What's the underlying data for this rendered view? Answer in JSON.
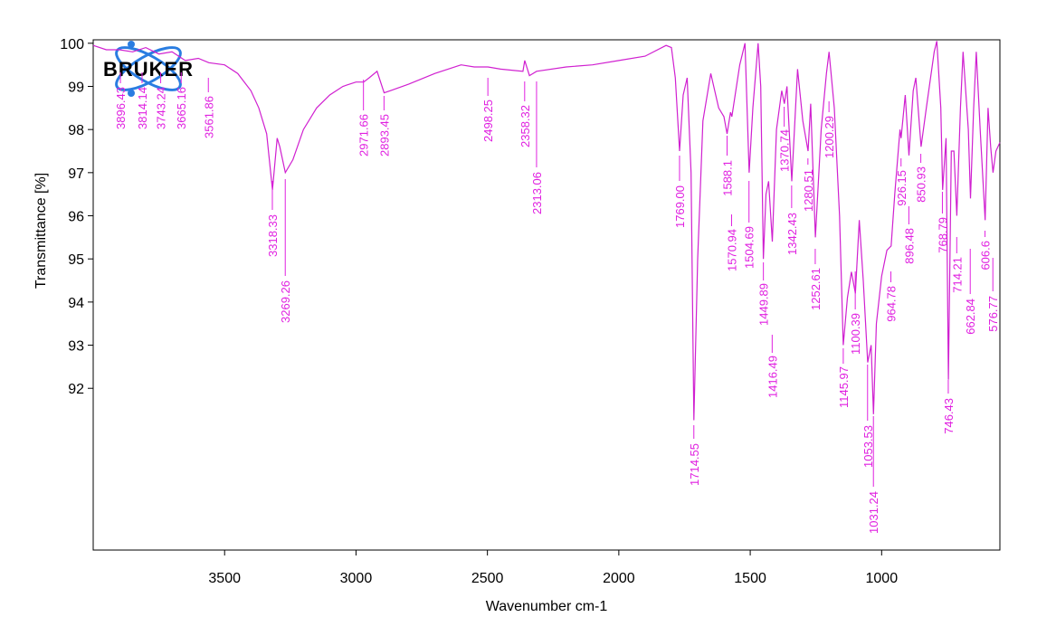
{
  "chart_data": {
    "type": "line",
    "logo": "BRUKER",
    "x_label": "Wavenumber cm-1",
    "y_label": "Transmittance [%]",
    "xlim": [
      4000,
      550
    ],
    "ylim": [
      88.25,
      100.08
    ],
    "xticks": [
      3500,
      3000,
      2500,
      2000,
      1500,
      1000
    ],
    "yticks": [
      92,
      93,
      94,
      95,
      96,
      97,
      98,
      99,
      100
    ],
    "color": "#d020d0",
    "series": [
      {
        "x": [
          4000,
          3950,
          3900,
          3850,
          3800,
          3750,
          3700,
          3650,
          3600,
          3560,
          3500,
          3450,
          3400,
          3370,
          3340,
          3318,
          3300,
          3290,
          3269,
          3240,
          3200,
          3150,
          3100,
          3050,
          3000,
          2971,
          2950,
          2920,
          2893,
          2870,
          2800,
          2700,
          2600,
          2550,
          2498,
          2450,
          2365,
          2358,
          2340,
          2313,
          2200,
          2100,
          2000,
          1900,
          1820,
          1800,
          1785,
          1769,
          1755,
          1740,
          1725,
          1714.55,
          1700,
          1680,
          1650,
          1620,
          1600,
          1588,
          1575,
          1570,
          1540,
          1520,
          1504,
          1490,
          1470,
          1460,
          1450,
          1440,
          1430,
          1416,
          1400,
          1380,
          1370,
          1360,
          1342,
          1320,
          1300,
          1280,
          1270,
          1252,
          1230,
          1210,
          1200,
          1180,
          1160,
          1146,
          1130,
          1115,
          1100,
          1085,
          1070,
          1053,
          1040,
          1031,
          1020,
          1000,
          980,
          964,
          950,
          930,
          926,
          910,
          896,
          880,
          870,
          850,
          830,
          800,
          790,
          775,
          768,
          755,
          746,
          735,
          725,
          714,
          700,
          690,
          670,
          662,
          650,
          640,
          625,
          606,
          595,
          585,
          576,
          565,
          550
        ],
        "values": [
          99.95,
          99.85,
          99.85,
          99.8,
          99.9,
          99.75,
          99.8,
          99.6,
          99.65,
          99.55,
          99.5,
          99.3,
          98.9,
          98.5,
          97.9,
          96.6,
          97.8,
          97.6,
          97.0,
          97.3,
          98.0,
          98.5,
          98.8,
          99.0,
          99.1,
          99.1,
          99.2,
          99.35,
          98.85,
          98.9,
          99.05,
          99.3,
          99.5,
          99.45,
          99.45,
          99.4,
          99.35,
          99.6,
          99.25,
          99.35,
          99.45,
          99.5,
          99.6,
          99.7,
          99.95,
          99.9,
          99.2,
          97.5,
          98.8,
          99.2,
          97.0,
          91.26,
          95.0,
          98.2,
          99.3,
          98.5,
          98.3,
          97.9,
          98.4,
          98.3,
          99.5,
          100.0,
          97.0,
          98.5,
          100.0,
          99.0,
          95.0,
          96.5,
          96.8,
          95.4,
          98.0,
          98.9,
          98.6,
          99.0,
          96.8,
          99.4,
          98.2,
          97.5,
          98.6,
          95.5,
          98.0,
          99.3,
          99.8,
          98.5,
          96.0,
          93.0,
          94.1,
          94.7,
          94.2,
          95.9,
          94.5,
          92.6,
          93.0,
          91.4,
          93.5,
          94.6,
          95.2,
          95.3,
          96.5,
          98.0,
          97.8,
          98.8,
          97.4,
          98.9,
          99.2,
          97.6,
          98.5,
          99.8,
          100.05,
          98.5,
          96.6,
          97.8,
          92.2,
          97.5,
          97.5,
          96.0,
          98.5,
          99.8,
          98.0,
          96.4,
          98.5,
          99.8,
          98.0,
          95.9,
          98.5,
          97.6,
          97.0,
          97.5,
          97.7
        ]
      }
    ],
    "peaks": [
      3896.43,
      3814.14,
      3743.24,
      3665.16,
      3561.86,
      3318.33,
      3269.26,
      2971.66,
      2893.45,
      2498.25,
      2358.32,
      2313.06,
      {
        "value": 1769,
        "label": "1769.00"
      },
      1714.55,
      1588.1,
      1570.94,
      1504.69,
      1449.89,
      1416.49,
      1370.74,
      1342.43,
      1280.51,
      1252.61,
      1200.29,
      1145.97,
      1100.39,
      1053.53,
      1031.24,
      964.78,
      926.15,
      896.48,
      850.93,
      768.79,
      746.43,
      714.21,
      662.84,
      606.6,
      576.77
    ]
  }
}
